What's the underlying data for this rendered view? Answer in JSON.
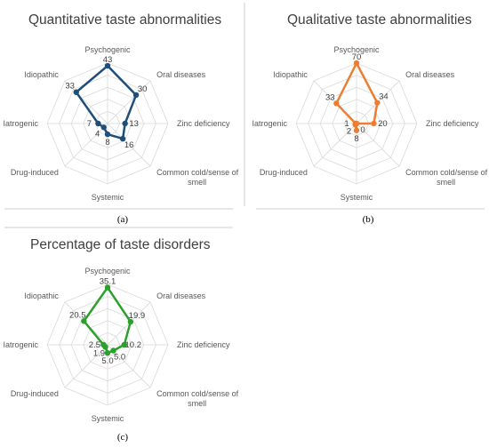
{
  "chart_data": [
    {
      "type": "radar",
      "title": "Quantitative taste abnormalities",
      "caption": "(a)",
      "categories": [
        "Psychogenic",
        "Oral diseases",
        "Zinc deficiency",
        "Common cold/sense of smell",
        "Systemic",
        "Drug-induced",
        "Iatrogenic",
        "Idiopathic"
      ],
      "category_lines": [
        [
          "Psychogenic"
        ],
        [
          "Oral diseases"
        ],
        [
          "Zinc deficiency"
        ],
        [
          "Common cold/sense of",
          "smell"
        ],
        [
          "Systemic"
        ],
        [
          "Drug-induced"
        ],
        [
          "Iatrogenic"
        ],
        [
          "Idiopathic"
        ]
      ],
      "values": [
        43,
        30,
        13,
        16,
        8,
        4,
        7,
        33
      ],
      "value_labels": [
        "43",
        "30",
        "13",
        "16",
        "8",
        "4",
        "7",
        "33"
      ],
      "rmax": 45,
      "color": "#1f4e79"
    },
    {
      "type": "radar",
      "title": "Qualitative taste abnormalities",
      "caption": "(b)",
      "categories": [
        "Psychogenic",
        "Oral diseases",
        "Zinc deficiency",
        "Common cold/sense of smell",
        "Systemic",
        "Drug-induced",
        "Iatrogenic",
        "Idiopathic"
      ],
      "category_lines": [
        [
          "Psychogenic"
        ],
        [
          "Oral diseases"
        ],
        [
          "Zinc deficiency"
        ],
        [
          "Common cold/sense of",
          "smell"
        ],
        [
          "Systemic"
        ],
        [
          "Drug-induced"
        ],
        [
          "Iatrogenic"
        ],
        [
          "Idiopathic"
        ]
      ],
      "values": [
        70,
        34,
        20,
        0,
        8,
        2,
        1,
        33
      ],
      "value_labels": [
        "70",
        "34",
        "20",
        "0",
        "8",
        "2",
        "1",
        "33"
      ],
      "rmax": 70,
      "color": "#ed7d31"
    },
    {
      "type": "radar",
      "title": "Percentage of taste disorders",
      "caption": "(c)",
      "categories": [
        "Psychogenic",
        "Oral diseases",
        "Zinc deficiency",
        "Common cold/sense of smell",
        "Systemic",
        "Drug-induced",
        "Iatrogenic",
        "Idiopathic"
      ],
      "category_lines": [
        [
          "Psychogenic"
        ],
        [
          "Oral diseases"
        ],
        [
          "Zinc deficiency"
        ],
        [
          "Common cold/sense of",
          "smell"
        ],
        [
          "Systemic"
        ],
        [
          "Drug-induced"
        ],
        [
          "Iatrogenic"
        ],
        [
          "Idiopathic"
        ]
      ],
      "values": [
        35.1,
        19.9,
        10.2,
        5.0,
        5.0,
        1.9,
        2.5,
        20.5
      ],
      "value_labels": [
        "35.1",
        "19.9",
        "10.2",
        "5.0",
        "5.0",
        "1.9",
        "2.5",
        "20.5"
      ],
      "rmax": 37,
      "color": "#2ca02c"
    }
  ]
}
